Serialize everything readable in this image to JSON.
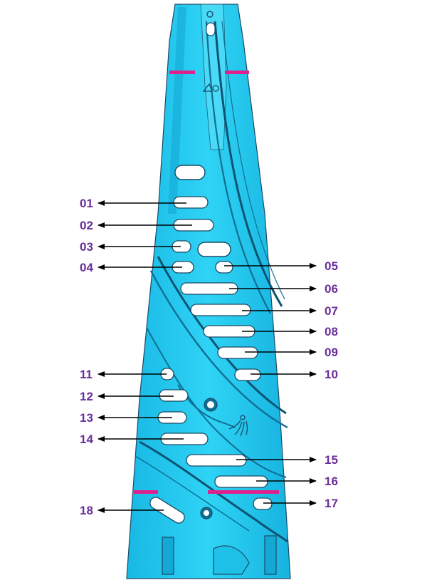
{
  "colors": {
    "part_fill": "#1fc8ee",
    "part_fill_dark": "#12a7cf",
    "part_fill_light": "#6fe2fb",
    "edge": "#1a4b66",
    "slot_fill": "#ffffff",
    "marker": "#e0208c",
    "label": "#6a2e9a",
    "arrow": "#000000"
  },
  "icons": [
    "logo-mark-icon",
    "water-spray-icon",
    "ring-hole-icon"
  ],
  "callouts": {
    "left": [
      {
        "id": "01"
      },
      {
        "id": "02"
      },
      {
        "id": "03"
      },
      {
        "id": "04"
      },
      {
        "id": "11"
      },
      {
        "id": "12"
      },
      {
        "id": "13"
      },
      {
        "id": "14"
      },
      {
        "id": "18"
      }
    ],
    "right": [
      {
        "id": "05"
      },
      {
        "id": "06"
      },
      {
        "id": "07"
      },
      {
        "id": "08"
      },
      {
        "id": "09"
      },
      {
        "id": "10"
      },
      {
        "id": "15"
      },
      {
        "id": "16"
      },
      {
        "id": "17"
      }
    ]
  }
}
